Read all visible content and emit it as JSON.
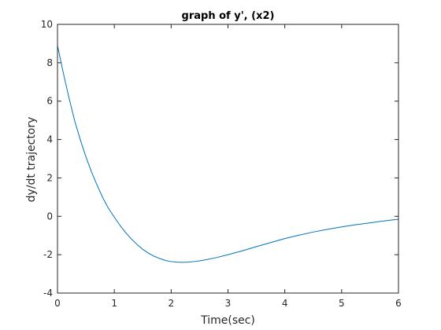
{
  "chart_data": {
    "type": "line",
    "title": "graph of y', (x2)",
    "xlabel": "Time(sec)",
    "ylabel": "dy/dt trajectory",
    "xlim": [
      0,
      6
    ],
    "ylim": [
      -4,
      10
    ],
    "xticks": [
      0,
      1,
      2,
      3,
      4,
      5,
      6
    ],
    "yticks": [
      -4,
      -2,
      0,
      2,
      4,
      6,
      8,
      10
    ],
    "grid": false,
    "colors": {
      "line": "#0072bd",
      "axis": "#262626",
      "background": "#ffffff"
    },
    "series": [
      {
        "x": [
          0,
          0.1,
          0.2,
          0.3,
          0.4,
          0.5,
          0.6,
          0.7,
          0.8,
          0.9,
          1.0,
          1.1,
          1.2,
          1.3,
          1.4,
          1.5,
          1.6,
          1.7,
          1.8,
          1.9,
          2.0,
          2.1,
          2.2,
          2.3,
          2.4,
          2.5,
          2.6,
          2.8,
          3.0,
          3.25,
          3.5,
          3.75,
          4.0,
          4.25,
          4.5,
          4.75,
          5.0,
          5.25,
          5.5,
          5.75,
          6.0
        ],
        "values": [
          8.9,
          7.5,
          6.2,
          5.0,
          4.0,
          3.1,
          2.3,
          1.6,
          0.95,
          0.4,
          -0.05,
          -0.47,
          -0.85,
          -1.18,
          -1.47,
          -1.72,
          -1.92,
          -2.08,
          -2.2,
          -2.3,
          -2.36,
          -2.39,
          -2.4,
          -2.39,
          -2.36,
          -2.32,
          -2.27,
          -2.15,
          -2.0,
          -1.8,
          -1.58,
          -1.37,
          -1.16,
          -0.98,
          -0.82,
          -0.68,
          -0.55,
          -0.44,
          -0.34,
          -0.24,
          -0.15
        ]
      }
    ]
  }
}
